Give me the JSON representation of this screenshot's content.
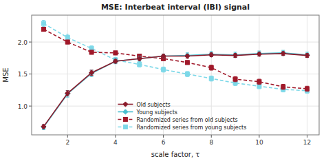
{
  "chart_data": {
    "type": "line",
    "title": "MSE: Interbeat interval (IBI) signal",
    "xlabel": "scale factor, τ",
    "ylabel": "MSE",
    "x": [
      1,
      2,
      3,
      4,
      5,
      6,
      7,
      8,
      9,
      10,
      11,
      12
    ],
    "series": [
      {
        "name": "Old subjects",
        "color": "#8B1A2A",
        "marker": "diamond",
        "line_style": "solid",
        "values": [
          0.68,
          1.2,
          1.52,
          1.7,
          1.74,
          1.78,
          1.78,
          1.8,
          1.79,
          1.81,
          1.82,
          1.79
        ],
        "errors": [
          0.03,
          0.04,
          0.04,
          0.03,
          0.03,
          0.03,
          0.03,
          0.03,
          0.03,
          0.03,
          0.03,
          0.03
        ]
      },
      {
        "name": "Young subjects",
        "color": "#4BBFCF",
        "marker": "diamond",
        "line_style": "solid",
        "values": [
          0.67,
          1.19,
          1.51,
          1.7,
          1.74,
          1.78,
          1.79,
          1.81,
          1.8,
          1.82,
          1.83,
          1.8
        ],
        "errors": [
          0.04,
          0.05,
          0.05,
          0.04,
          0.04,
          0.03,
          0.04,
          0.04,
          0.04,
          0.04,
          0.04,
          0.04
        ]
      },
      {
        "name": "Randomized series from old subjects",
        "color": "#A0192A",
        "marker": "square",
        "line_style": "dashed",
        "values": [
          2.2,
          2.0,
          1.84,
          1.83,
          1.78,
          1.74,
          1.68,
          1.6,
          1.42,
          1.38,
          1.3,
          1.27
        ],
        "errors": [
          0.03,
          0.03,
          0.03,
          0.03,
          0.03,
          0.03,
          0.03,
          0.04,
          0.04,
          0.04,
          0.04,
          0.04
        ]
      },
      {
        "name": "Randomized series from young subjects",
        "color": "#7DD8E8",
        "marker": "square",
        "line_style": "dashed",
        "values": [
          2.29,
          2.07,
          1.9,
          1.72,
          1.65,
          1.57,
          1.5,
          1.43,
          1.36,
          1.31,
          1.26,
          1.24
        ],
        "errors": [
          0.05,
          0.05,
          0.04,
          0.04,
          0.04,
          0.04,
          0.04,
          0.04,
          0.04,
          0.04,
          0.04,
          0.04
        ]
      }
    ],
    "xlim": [
      0.5,
      12.5
    ],
    "ylim": [
      0.55,
      2.42
    ],
    "xticks": [
      2,
      4,
      6,
      8,
      10,
      12
    ],
    "yticks": [
      {
        "value": 1.0,
        "label": "1.0"
      },
      1.5,
      {
        "value": 2.0,
        "label": "2.0"
      }
    ],
    "grid": true,
    "legend": "lower left"
  }
}
